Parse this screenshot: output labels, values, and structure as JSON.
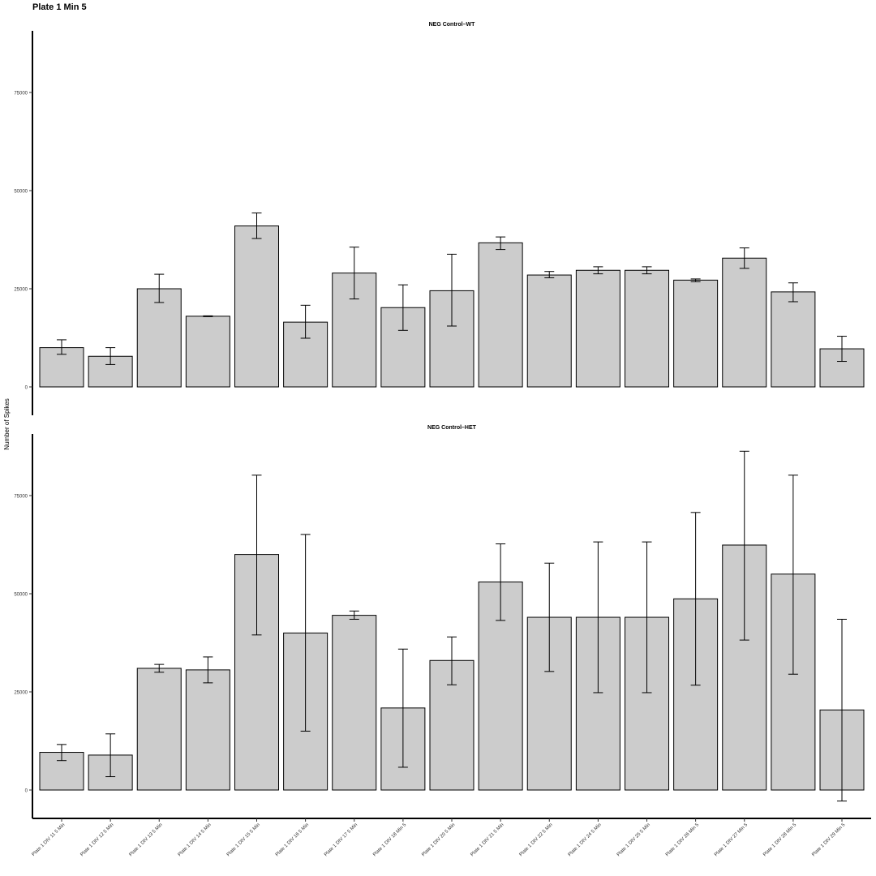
{
  "title": "Plate 1 Min 5",
  "ylabel": "Number of Spikes",
  "chart_data": {
    "type": "bar",
    "title": "Plate 1 Min 5",
    "ylabel": "Number of Spikes",
    "xlabel": "",
    "ylim": [
      0,
      88000
    ],
    "yticks": [
      0,
      25000,
      50000,
      75000
    ],
    "ytick_labels": [
      "0",
      "25000",
      "50000",
      "75000"
    ],
    "categories": [
      "Plate 1 DIV 11 5 Min",
      "Plate 1 DIV 12 5 Min",
      "Plate 1 DIV 13 5 Min",
      "Plate 1 DIV 14 5 Min",
      "Plate 1 DIV 15 5 Min",
      "Plate 1 DIV 16 5 Min",
      "Plate 1 DIV 17 5 Min",
      "Plate 1 DIV 18 Min 5",
      "Plate 1 DIV 20 5 Min",
      "Plate 1 DIV 21 5 Min",
      "Plate 1 DIV 22 5 Min",
      "Plate 1 DIV 24 5 Min",
      "Plate 1 DIV 25 5 Min",
      "Plate 1 DIV 26 Min 5",
      "Plate 1 DIV 27 Min 5",
      "Plate 1 DIV 28 Min 5",
      "Plate 1 DIV 29 Min 5"
    ],
    "bar_color": "#cccccc",
    "panels": [
      {
        "name": "NEG Control–WT",
        "values": [
          10000,
          7800,
          25000,
          18000,
          41000,
          16500,
          29000,
          20200,
          24500,
          36700,
          28500,
          29700,
          29700,
          27200,
          32800,
          24200,
          9700
        ],
        "error_low": [
          8300,
          5700,
          21500,
          17900,
          37800,
          12400,
          22400,
          14400,
          15500,
          35000,
          27800,
          28800,
          28800,
          26800,
          30200,
          21700,
          6500
        ],
        "error_high": [
          12000,
          10000,
          28700,
          18100,
          44300,
          20800,
          35600,
          26000,
          33800,
          38200,
          29400,
          30600,
          30600,
          27500,
          35400,
          26500,
          12900
        ]
      },
      {
        "name": "NEG Control–HET",
        "values": [
          9600,
          8900,
          31000,
          30600,
          60000,
          40000,
          44500,
          20900,
          33000,
          53000,
          44000,
          44000,
          44000,
          48700,
          62400,
          55000,
          20400
        ],
        "error_low": [
          7500,
          3400,
          30000,
          27300,
          39500,
          15000,
          43500,
          5800,
          26800,
          43200,
          30200,
          24800,
          24800,
          26700,
          38200,
          29500,
          -2800
        ],
        "error_high": [
          11600,
          14300,
          32000,
          33900,
          80200,
          65100,
          45600,
          35900,
          39000,
          62700,
          57800,
          63200,
          63200,
          70700,
          86300,
          80200,
          43500
        ]
      }
    ]
  }
}
